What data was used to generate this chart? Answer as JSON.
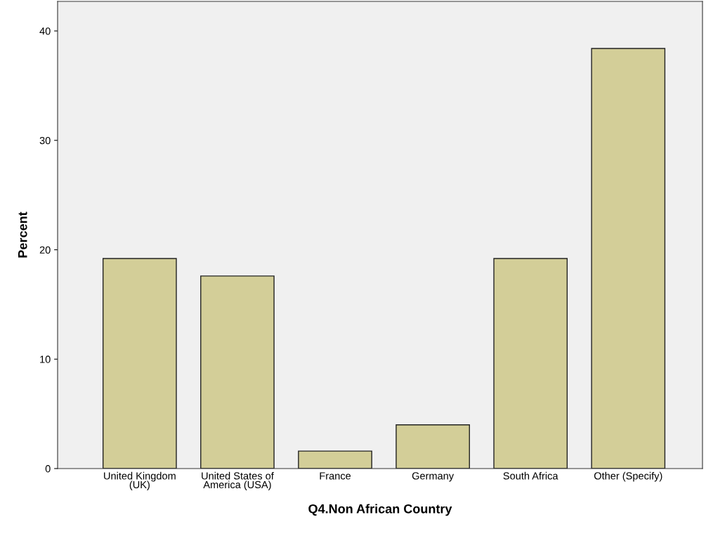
{
  "chart_data": {
    "type": "bar",
    "xlabel": "Q4.Non African Country",
    "ylabel": "Percent",
    "categories": [
      "United Kingdom\n(UK)",
      "United States of\nAmerica (USA)",
      "France",
      "Germany",
      "South Africa",
      "Other (Specify)"
    ],
    "values": [
      19.2,
      17.6,
      1.6,
      4.0,
      19.2,
      38.4
    ],
    "color": "#d3ce98",
    "ylim": [
      0,
      42.7
    ],
    "yticks": [
      0,
      10,
      20,
      30,
      40
    ],
    "grid": false,
    "legend": false
  }
}
